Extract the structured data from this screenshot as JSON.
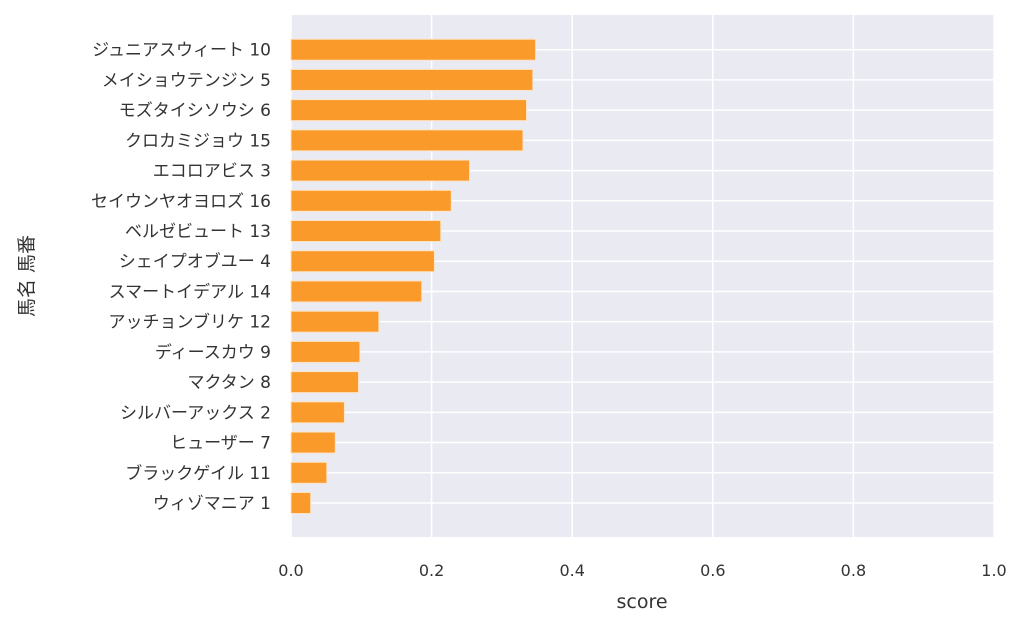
{
  "chart_data": {
    "type": "bar",
    "orientation": "horizontal",
    "xlabel": "score",
    "ylabel": "馬名 馬番",
    "xlim": [
      0.0,
      1.0
    ],
    "xticks": [
      "0.0",
      "0.2",
      "0.4",
      "0.6",
      "0.8",
      "1.0"
    ],
    "grid": true,
    "bar_color": "#fa9a2a",
    "background_color": "#eaeaf2",
    "categories": [
      "ジュニアスウィート 10",
      "メイショウテンジン 5",
      "モズタイシソウシ 6",
      "クロカミジョウ 15",
      "エコロアビス 3",
      "セイウンヤオヨロズ 16",
      "ベルゼビュート 13",
      "シェイプオブユー 4",
      "スマートイデアル 14",
      "アッチョンブリケ 12",
      "ディースカウ 9",
      "マクタン 8",
      "シルバーアックス 2",
      "ヒューザー 7",
      "ブラックゲイル 11",
      "ウィゾマニア 1"
    ],
    "values": [
      0.348,
      0.344,
      0.335,
      0.33,
      0.254,
      0.228,
      0.213,
      0.204,
      0.186,
      0.125,
      0.098,
      0.096,
      0.076,
      0.063,
      0.051,
      0.028
    ]
  }
}
